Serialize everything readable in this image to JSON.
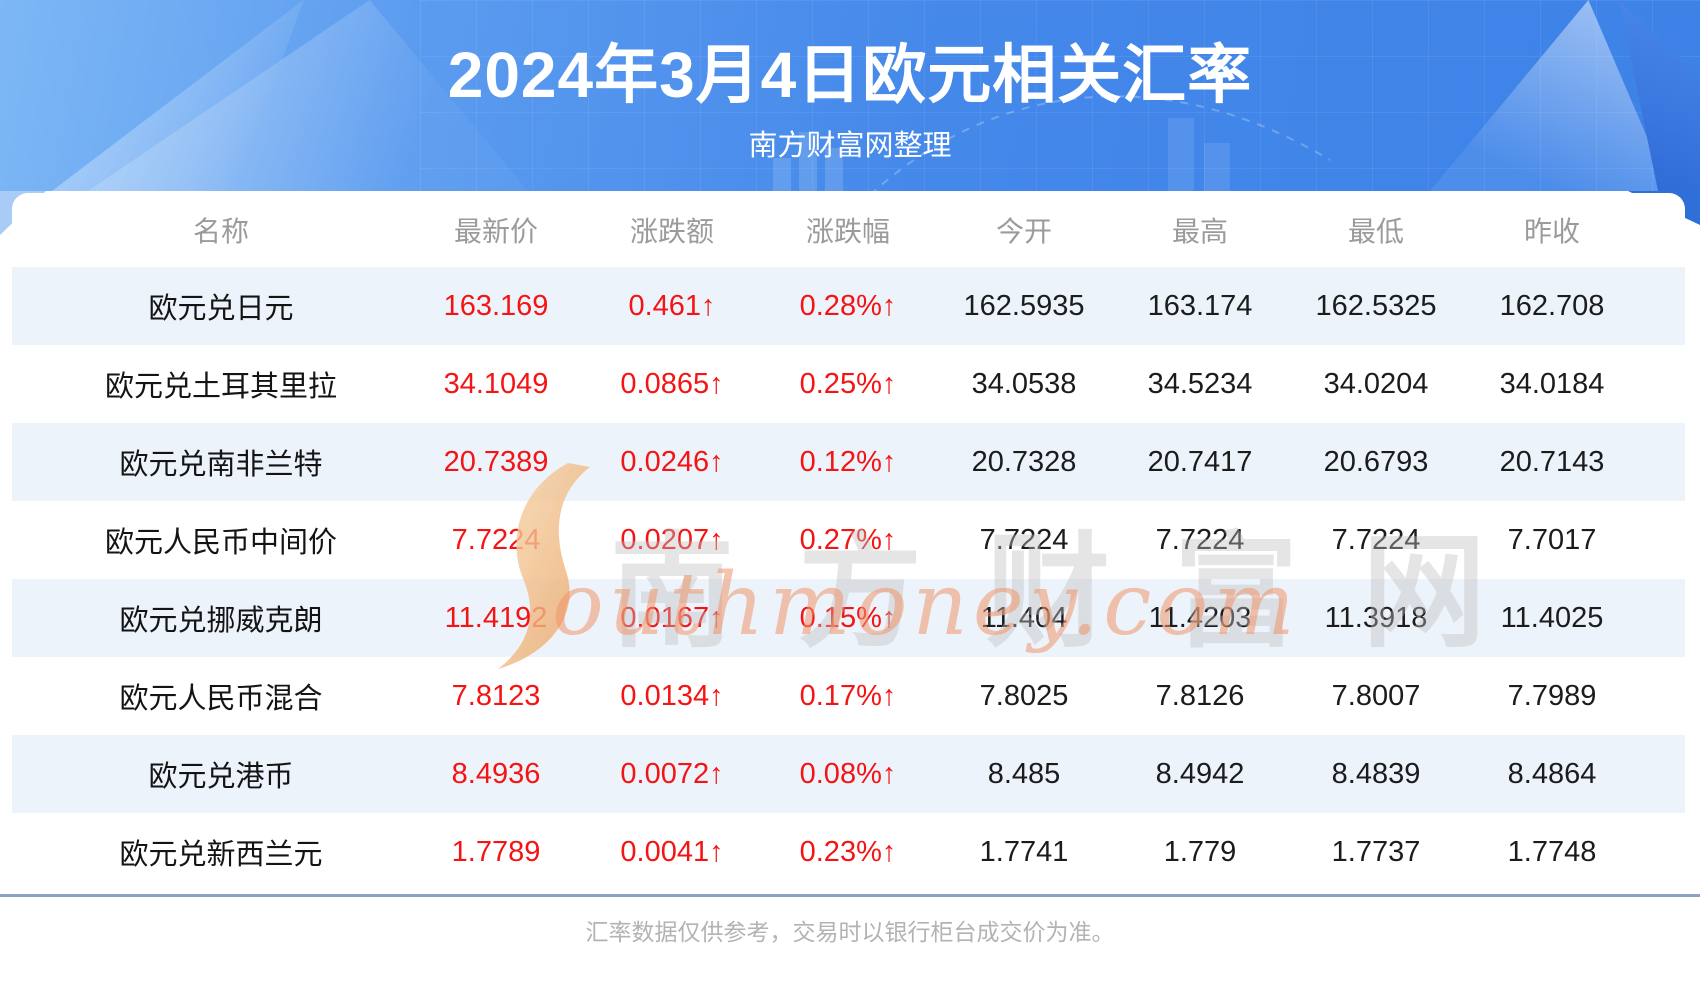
{
  "banner": {
    "title": "2024年3月4日欧元相关汇率",
    "subtitle": "南方财富网整理"
  },
  "table": {
    "columns": [
      "名称",
      "最新价",
      "涨跌额",
      "涨跌幅",
      "今开",
      "最高",
      "最低",
      "昨收"
    ],
    "rows": [
      {
        "name": "欧元兑日元",
        "values": [
          "163.169",
          "0.461↑",
          "0.28%↑",
          "162.5935",
          "163.174",
          "162.5325",
          "162.708"
        ]
      },
      {
        "name": "欧元兑土耳其里拉",
        "values": [
          "34.1049",
          "0.0865↑",
          "0.25%↑",
          "34.0538",
          "34.5234",
          "34.0204",
          "34.0184"
        ]
      },
      {
        "name": "欧元兑南非兰特",
        "values": [
          "20.7389",
          "0.0246↑",
          "0.12%↑",
          "20.7328",
          "20.7417",
          "20.6793",
          "20.7143"
        ]
      },
      {
        "name": "欧元人民币中间价",
        "values": [
          "7.7224",
          "0.0207↑",
          "0.27%↑",
          "7.7224",
          "7.7224",
          "7.7224",
          "7.7017"
        ]
      },
      {
        "name": "欧元兑挪威克朗",
        "values": [
          "11.4192",
          "0.0167↑",
          "0.15%↑",
          "11.404",
          "11.4203",
          "11.3918",
          "11.4025"
        ]
      },
      {
        "name": "欧元人民币混合",
        "values": [
          "7.8123",
          "0.0134↑",
          "0.17%↑",
          "7.8025",
          "7.8126",
          "7.8007",
          "7.7989"
        ]
      },
      {
        "name": "欧元兑港币",
        "values": [
          "8.4936",
          "0.0072↑",
          "0.08%↑",
          "8.485",
          "8.4942",
          "8.4839",
          "8.4864"
        ]
      },
      {
        "name": "欧元兑新西兰元",
        "values": [
          "1.7789",
          "0.0041↑",
          "0.23%↑",
          "1.7741",
          "1.779",
          "1.7737",
          "1.7748"
        ]
      }
    ]
  },
  "chart_data": {
    "type": "table",
    "title": "2024年3月4日欧元相关汇率",
    "columns": [
      "名称",
      "最新价",
      "涨跌额",
      "涨跌幅",
      "今开",
      "最高",
      "最低",
      "昨收"
    ],
    "rows": [
      [
        "欧元兑日元",
        163.169,
        0.461,
        "0.28%",
        162.5935,
        163.174,
        162.5325,
        162.708
      ],
      [
        "欧元兑土耳其里拉",
        34.1049,
        0.0865,
        "0.25%",
        34.0538,
        34.5234,
        34.0204,
        34.0184
      ],
      [
        "欧元兑南非兰特",
        20.7389,
        0.0246,
        "0.12%",
        20.7328,
        20.7417,
        20.6793,
        20.7143
      ],
      [
        "欧元人民币中间价",
        7.7224,
        0.0207,
        "0.27%",
        7.7224,
        7.7224,
        7.7224,
        7.7017
      ],
      [
        "欧元兑挪威克朗",
        11.4192,
        0.0167,
        "0.15%",
        11.404,
        11.4203,
        11.3918,
        11.4025
      ],
      [
        "欧元人民币混合",
        7.8123,
        0.0134,
        "0.17%",
        7.8025,
        7.8126,
        7.8007,
        7.7989
      ],
      [
        "欧元兑港币",
        8.4936,
        0.0072,
        "0.08%",
        8.485,
        8.4942,
        8.4839,
        8.4864
      ],
      [
        "欧元兑新西兰元",
        1.7789,
        0.0041,
        "0.23%",
        1.7741,
        1.779,
        1.7737,
        1.7748
      ]
    ],
    "all_changes_direction": "up"
  },
  "watermark": {
    "cn": "南方财富网",
    "en": "outhmoney.com"
  },
  "footer": {
    "disclaimer": "汇率数据仅供参考，交易时以银行柜台成交价为准。"
  },
  "colors": {
    "banner_blue_light": "#7db7f5",
    "banner_blue_dark": "#3d82e7",
    "row_alt_blue": "#edf3fb",
    "value_red": "#f51414",
    "value_black": "#1c1c1c",
    "header_gray": "#9b9b9b",
    "divider_blue_gray": "#8ca3c4",
    "footer_gray": "#b3b3b3",
    "watermark_orange": "#f0956b"
  }
}
